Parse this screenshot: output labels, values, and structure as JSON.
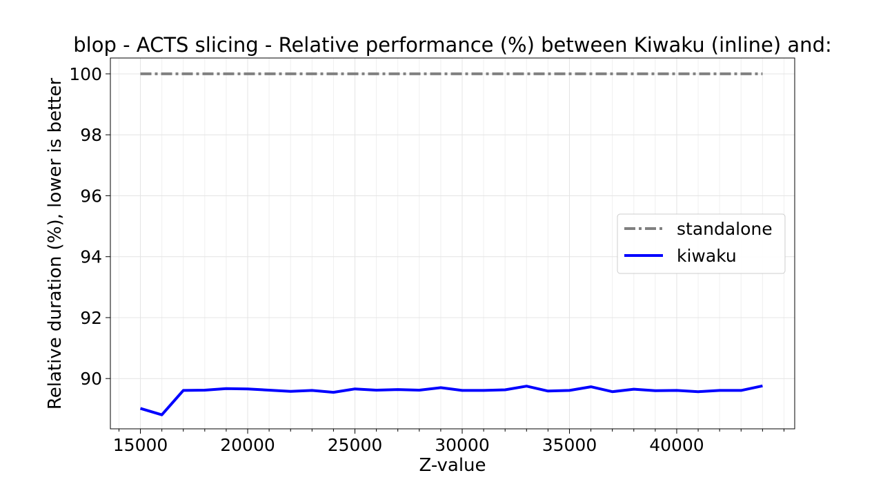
{
  "chart_data": {
    "type": "line",
    "title": "blop - ACTS slicing - Relative performance (%) between Kiwaku (inline) and:",
    "xlabel": "Z-value",
    "ylabel": "Relative duration (%), lower is better",
    "xlim": [
      13600,
      45500
    ],
    "ylim": [
      88.35,
      100.52
    ],
    "xticks": [
      15000,
      20000,
      25000,
      30000,
      35000,
      40000
    ],
    "xtick_labels": [
      "15000",
      "20000",
      "25000",
      "30000",
      "35000",
      "40000"
    ],
    "yticks": [
      90,
      92,
      94,
      96,
      98,
      100
    ],
    "ytick_labels": [
      "90",
      "92",
      "94",
      "96",
      "98",
      "100"
    ],
    "minor_x_step": 1000,
    "grid": true,
    "legend_position": "center-right",
    "x": [
      15000,
      16000,
      17000,
      18000,
      19000,
      20000,
      21000,
      22000,
      23000,
      24000,
      25000,
      26000,
      27000,
      28000,
      29000,
      30000,
      31000,
      32000,
      33000,
      34000,
      35000,
      36000,
      37000,
      38000,
      39000,
      40000,
      41000,
      42000,
      43000,
      44000
    ],
    "series": [
      {
        "name": "standalone",
        "color": "#808080",
        "style": "dashdot",
        "values": [
          100,
          100,
          100,
          100,
          100,
          100,
          100,
          100,
          100,
          100,
          100,
          100,
          100,
          100,
          100,
          100,
          100,
          100,
          100,
          100,
          100,
          100,
          100,
          100,
          100,
          100,
          100,
          100,
          100,
          100
        ]
      },
      {
        "name": "kiwaku",
        "color": "#0000ff",
        "style": "solid",
        "values": [
          89.02,
          88.81,
          89.61,
          89.62,
          89.67,
          89.66,
          89.62,
          89.58,
          89.61,
          89.55,
          89.66,
          89.62,
          89.64,
          89.62,
          89.7,
          89.61,
          89.61,
          89.63,
          89.75,
          89.59,
          89.61,
          89.73,
          89.57,
          89.65,
          89.6,
          89.61,
          89.57,
          89.61,
          89.61,
          89.76
        ]
      }
    ]
  }
}
